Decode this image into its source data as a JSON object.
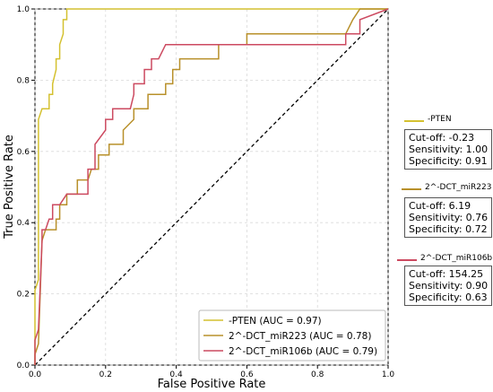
{
  "chart_data": {
    "type": "line",
    "xlabel": "False Positive Rate",
    "ylabel": "True Positive Rate",
    "xlim": [
      0,
      1
    ],
    "ylim": [
      0,
      1
    ],
    "xticks": [
      "0.0",
      "0.2",
      "0.4",
      "0.6",
      "0.8",
      "1.0"
    ],
    "yticks": [
      "0.0",
      "0.2",
      "0.4",
      "0.6",
      "0.8",
      "1.0"
    ],
    "grid": true,
    "legend_position": "bottom-right",
    "diagonal": true,
    "series": [
      {
        "name": "-PTEN (AUC = 0.97)",
        "color": "#d4c130",
        "x": [
          0,
          0,
          0.01,
          0.01,
          0.02,
          0.02,
          0.04,
          0.04,
          0.05,
          0.05,
          0.06,
          0.06,
          0.07,
          0.07,
          0.08,
          0.08,
          0.09,
          0.09,
          0.9,
          0.92,
          1.0
        ],
        "y": [
          0,
          0.21,
          0.24,
          0.69,
          0.72,
          0.72,
          0.72,
          0.76,
          0.76,
          0.79,
          0.83,
          0.86,
          0.86,
          0.9,
          0.93,
          0.97,
          0.97,
          1.0,
          1.0,
          1.0,
          1.0
        ]
      },
      {
        "name": "2^-DCT_miR223 (AUC = 0.78)",
        "color": "#b8902a",
        "x": [
          0,
          0,
          0.01,
          0.02,
          0.03,
          0.03,
          0.06,
          0.06,
          0.07,
          0.07,
          0.09,
          0.09,
          0.12,
          0.12,
          0.15,
          0.15,
          0.16,
          0.16,
          0.18,
          0.18,
          0.21,
          0.21,
          0.25,
          0.25,
          0.28,
          0.28,
          0.32,
          0.32,
          0.37,
          0.37,
          0.39,
          0.39,
          0.41,
          0.41,
          0.52,
          0.52,
          0.6,
          0.6,
          0.88,
          0.88,
          0.9,
          0.92,
          1.0
        ],
        "y": [
          0,
          0.03,
          0.06,
          0.35,
          0.38,
          0.38,
          0.38,
          0.41,
          0.41,
          0.45,
          0.45,
          0.48,
          0.48,
          0.52,
          0.52,
          0.52,
          0.55,
          0.55,
          0.55,
          0.59,
          0.59,
          0.62,
          0.62,
          0.66,
          0.69,
          0.72,
          0.72,
          0.76,
          0.76,
          0.79,
          0.79,
          0.83,
          0.83,
          0.86,
          0.86,
          0.9,
          0.9,
          0.93,
          0.93,
          0.93,
          0.97,
          1.0,
          1.0
        ]
      },
      {
        "name": "2^-DCT_miR106b (AUC = 0.79)",
        "color": "#cc4a60",
        "x": [
          0,
          0,
          0.01,
          0.02,
          0.02,
          0.03,
          0.04,
          0.05,
          0.05,
          0.07,
          0.07,
          0.09,
          0.09,
          0.15,
          0.15,
          0.17,
          0.17,
          0.2,
          0.2,
          0.22,
          0.22,
          0.25,
          0.25,
          0.27,
          0.27,
          0.28,
          0.28,
          0.31,
          0.31,
          0.33,
          0.33,
          0.35,
          0.35,
          0.37,
          0.37,
          0.88,
          0.88,
          0.92,
          0.92,
          1.0
        ],
        "y": [
          0,
          0.07,
          0.1,
          0.35,
          0.38,
          0.38,
          0.41,
          0.41,
          0.45,
          0.45,
          0.45,
          0.48,
          0.48,
          0.48,
          0.55,
          0.55,
          0.62,
          0.66,
          0.69,
          0.69,
          0.72,
          0.72,
          0.72,
          0.72,
          0.72,
          0.76,
          0.79,
          0.79,
          0.83,
          0.83,
          0.86,
          0.86,
          0.86,
          0.9,
          0.9,
          0.9,
          0.93,
          0.93,
          0.97,
          1.0
        ]
      }
    ]
  },
  "side_annotations": [
    {
      "label": "-PTEN",
      "color": "#d4c130",
      "cutoff": "Cut-off: -0.23",
      "sensitivity": "Sensitivity: 1.00",
      "specificity": "Specificity: 0.91"
    },
    {
      "label": "2^-DCT_miR223",
      "color": "#b8902a",
      "cutoff": "Cut-off: 6.19",
      "sensitivity": "Sensitivity: 0.76",
      "specificity": "Specificity: 0.72"
    },
    {
      "label": "2^-DCT_miR106b",
      "color": "#cc4a60",
      "cutoff": "Cut-off: 154.25",
      "sensitivity": "Sensitivity: 0.90",
      "specificity": "Specificity: 0.63"
    }
  ]
}
